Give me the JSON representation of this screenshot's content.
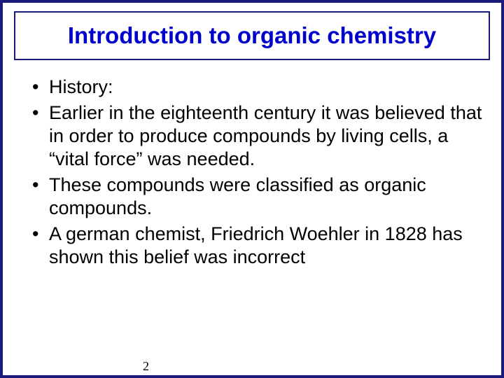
{
  "slide": {
    "title": "Introduction to organic chemistry",
    "title_color": "#0000cc",
    "border_color": "#1a1a7a",
    "background_color": "#ffffff",
    "text_color": "#000000",
    "title_fontsize": 33,
    "body_fontsize": 27,
    "bullets": [
      "History:",
      "Earlier in the eighteenth century it was believed that in order to produce compounds by living cells, a “vital force” was needed.",
      "These compounds were classified as organic compounds.",
      "A german chemist, Friedrich Woehler in 1828 has shown this belief was incorrect"
    ],
    "page_number": "2"
  }
}
